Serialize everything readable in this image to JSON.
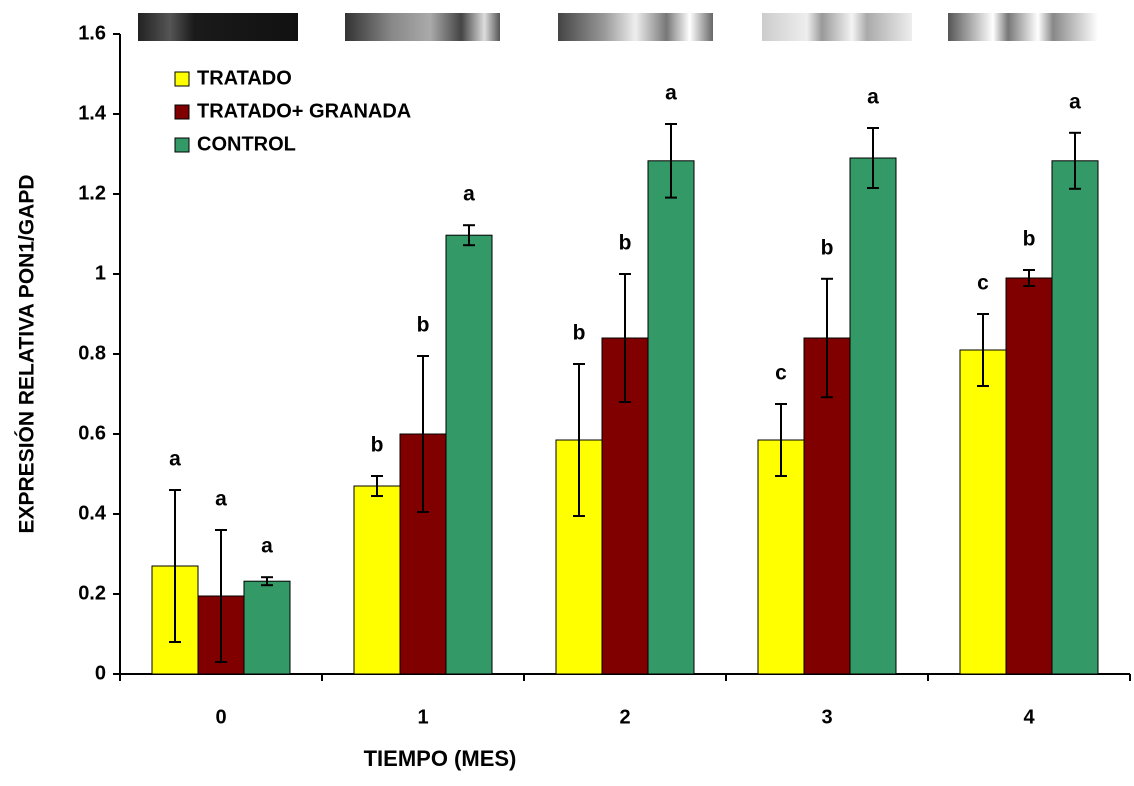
{
  "chart_data": {
    "type": "bar",
    "x_label": "TIEMPO (MES)",
    "y_label": "EXPRESIÓN RELATIVA PON1/GAPD",
    "categories": [
      "0",
      "1",
      "2",
      "3",
      "4"
    ],
    "series": [
      {
        "name": "TRATADO",
        "color": "#ffff00",
        "values": [
          0.27,
          0.47,
          0.585,
          0.585,
          0.81
        ],
        "errors": [
          0.19,
          0.025,
          0.19,
          0.09,
          0.09
        ],
        "annotations": [
          "a",
          "b",
          "b",
          "c",
          "c"
        ]
      },
      {
        "name": "TRATADO+ GRANADA",
        "color": "#800000",
        "values": [
          0.195,
          0.6,
          0.84,
          0.84,
          0.99
        ],
        "errors": [
          0.165,
          0.195,
          0.16,
          0.148,
          0.02
        ],
        "annotations": [
          "a",
          "b",
          "b",
          "b",
          "b"
        ]
      },
      {
        "name": "CONTROL",
        "color": "#339966",
        "values": [
          0.232,
          1.097,
          1.283,
          1.29,
          1.283
        ],
        "errors": [
          0.01,
          0.025,
          0.092,
          0.075,
          0.07
        ],
        "annotations": [
          "a",
          "a",
          "a",
          "a",
          "a"
        ]
      }
    ],
    "ylim": [
      0,
      1.6
    ],
    "yticks": [
      0,
      0.2,
      0.4,
      0.6,
      0.8,
      1,
      1.2,
      1.4,
      1.6
    ],
    "legend": "top-left"
  }
}
